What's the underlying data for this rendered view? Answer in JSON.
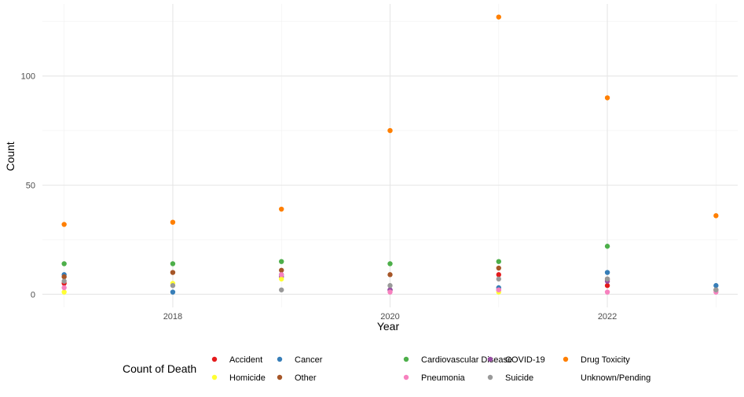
{
  "chart_data": {
    "type": "scatter",
    "xlabel": "Year",
    "ylabel": "Count",
    "xlim": [
      2016.8,
      2023.2
    ],
    "ylim": [
      -6,
      133
    ],
    "x_ticks": [
      2018,
      2020,
      2022
    ],
    "y_ticks": [
      0,
      50,
      100
    ],
    "grid": true,
    "legend": {
      "title": "Count of Death",
      "placement": "bottom"
    },
    "series": [
      {
        "name": "Accident",
        "color": "#e41a1c",
        "points": [
          [
            2017,
            5
          ],
          [
            2021,
            9
          ],
          [
            2022,
            4
          ],
          [
            2020,
            2
          ]
        ]
      },
      {
        "name": "Cancer",
        "color": "#377eb8",
        "points": [
          [
            2017,
            9
          ],
          [
            2018,
            1
          ],
          [
            2019,
            9
          ],
          [
            2020,
            2
          ],
          [
            2021,
            3
          ],
          [
            2022,
            10
          ],
          [
            2023,
            4
          ]
        ]
      },
      {
        "name": "Cardiovascular Disease",
        "color": "#4daf4a",
        "points": [
          [
            2017,
            14
          ],
          [
            2018,
            14
          ],
          [
            2019,
            15
          ],
          [
            2020,
            14
          ],
          [
            2021,
            15
          ],
          [
            2022,
            22
          ]
        ]
      },
      {
        "name": "COVID-19",
        "color": "#984ea3",
        "points": [
          [
            2019,
            8
          ],
          [
            2020,
            2
          ],
          [
            2021,
            2
          ],
          [
            2022,
            6
          ]
        ]
      },
      {
        "name": "Drug Toxicity",
        "color": "#ff7f00",
        "points": [
          [
            2017,
            32
          ],
          [
            2018,
            33
          ],
          [
            2019,
            39
          ],
          [
            2020,
            75
          ],
          [
            2021,
            127
          ],
          [
            2022,
            90
          ],
          [
            2023,
            36
          ]
        ]
      },
      {
        "name": "Homicide",
        "color": "#ffff33",
        "points": [
          [
            2017,
            1
          ],
          [
            2018,
            5
          ],
          [
            2019,
            7
          ],
          [
            2021,
            1
          ]
        ]
      },
      {
        "name": "Other",
        "color": "#a65628",
        "points": [
          [
            2017,
            8
          ],
          [
            2018,
            10
          ],
          [
            2019,
            11
          ],
          [
            2020,
            9
          ],
          [
            2021,
            12
          ],
          [
            2022,
            7
          ],
          [
            2023,
            2
          ]
        ]
      },
      {
        "name": "Pneumonia",
        "color": "#f781bf",
        "points": [
          [
            2017,
            3
          ],
          [
            2019,
            9
          ],
          [
            2020,
            1
          ],
          [
            2021,
            2
          ],
          [
            2022,
            1
          ],
          [
            2023,
            1
          ]
        ]
      },
      {
        "name": "Suicide",
        "color": "#999999",
        "points": [
          [
            2017,
            6
          ],
          [
            2018,
            4
          ],
          [
            2019,
            2
          ],
          [
            2020,
            4
          ],
          [
            2021,
            7
          ],
          [
            2022,
            7
          ],
          [
            2023,
            2
          ]
        ]
      },
      {
        "name": "Unknown/Pending",
        "color": "#ffffff",
        "points": []
      }
    ]
  }
}
